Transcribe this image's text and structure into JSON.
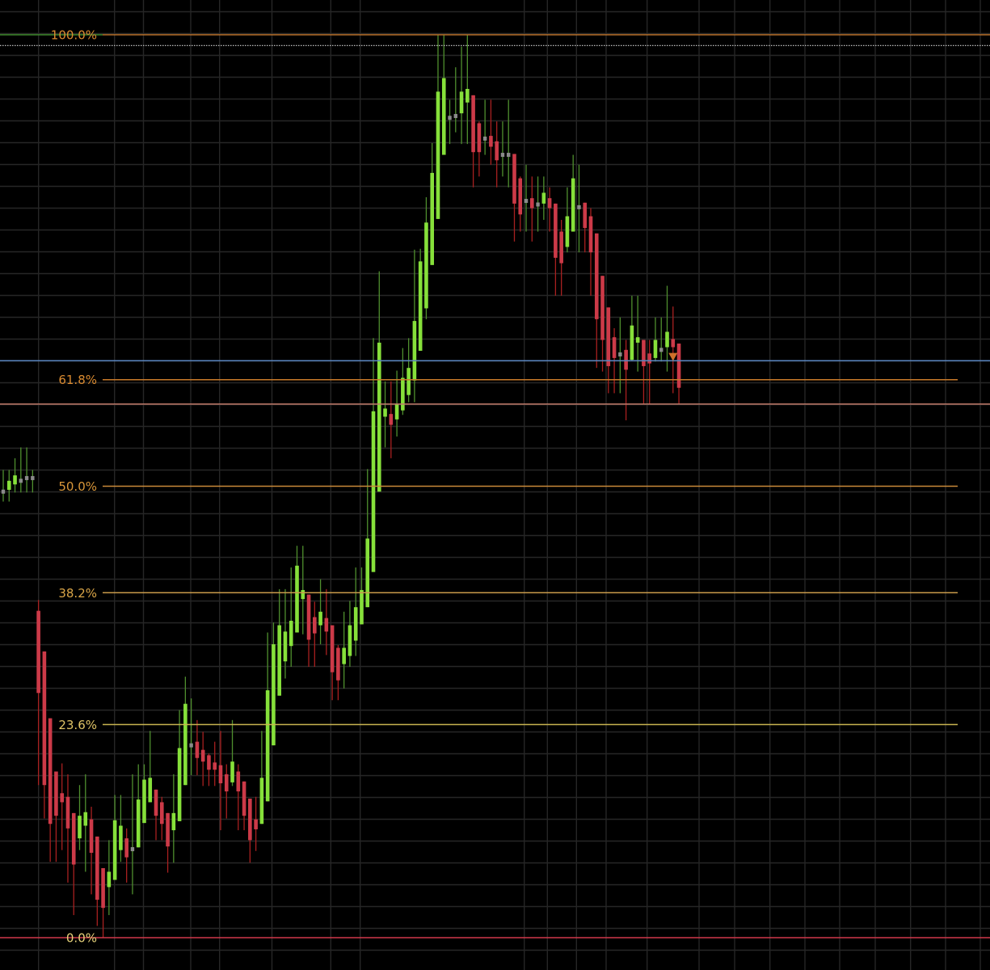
{
  "chart_data": {
    "type": "candlestick",
    "value_units": "percent of Fibonacci retracement range",
    "ylim": [
      -3.6,
      103.9
    ],
    "grid": true,
    "colors": {
      "background": "#000000",
      "grid": "#262626",
      "up_body": "#86e03a",
      "up_wick": "#4f8f2e",
      "down_body": "#cc3a48",
      "down_wick": "#a82020",
      "doji_marker": "#8a8a8a"
    },
    "fib_levels": [
      {
        "label": "100.0%",
        "value": 100.0,
        "line_color": "#b8702a",
        "label_color": "#d98a30",
        "full_width": true
      },
      {
        "label": "61.8%",
        "value": 61.8,
        "line_color": "#c97a2a",
        "label_color": "#d98a30",
        "full_width": false
      },
      {
        "label": "50.0%",
        "value": 50.0,
        "line_color": "#c98a3a",
        "label_color": "#d9973a",
        "full_width": false
      },
      {
        "label": "38.2%",
        "value": 38.2,
        "line_color": "#c99a4a",
        "label_color": "#d9a548",
        "full_width": false
      },
      {
        "label": "23.6%",
        "value": 23.6,
        "line_color": "#c8b450",
        "label_color": "#e0c466",
        "full_width": false
      },
      {
        "label": "0.0%",
        "value": 0.0,
        "line_color": "#d0384a",
        "label_color": "#e6d27a",
        "full_width": true
      }
    ],
    "extra_lines": [
      {
        "kind": "price-line-blue",
        "value": 63.9,
        "color": "#5a86c0",
        "style": "solid"
      },
      {
        "kind": "price-line-salmon",
        "value": 59.1,
        "color": "#c07a6a",
        "style": "solid"
      },
      {
        "kind": "high-dotted-line",
        "value": 98.8,
        "color": "#bbbbbb",
        "style": "dotted"
      }
    ],
    "marker": {
      "kind": "down-triangle",
      "candle_index": 114,
      "value": 64.4,
      "color": "#d0702a"
    },
    "candles_format": [
      "open",
      "high",
      "low",
      "close"
    ],
    "candles": [
      [
        49.4,
        51.8,
        48.3,
        49.4
      ],
      [
        49.6,
        51.8,
        48.3,
        50.6
      ],
      [
        50.2,
        53.1,
        49.3,
        51.2
      ],
      [
        50.6,
        54.3,
        49.3,
        50.6
      ],
      [
        50.9,
        54.3,
        49.3,
        50.9
      ],
      [
        50.9,
        51.8,
        49.3,
        50.9
      ],
      [
        36.2,
        37.4,
        16.9,
        27.1
      ],
      [
        31.7,
        31.7,
        13.2,
        16.9
      ],
      [
        24.3,
        24.3,
        8.4,
        12.6
      ],
      [
        18.4,
        18.4,
        8.4,
        13.5
      ],
      [
        16.0,
        19.3,
        9.7,
        15.0
      ],
      [
        15.6,
        18.1,
        6.1,
        12.1
      ],
      [
        13.8,
        13.8,
        2.5,
        8.1
      ],
      [
        11.0,
        16.9,
        9.7,
        13.5
      ],
      [
        12.4,
        18.1,
        7.3,
        13.9
      ],
      [
        13.1,
        14.5,
        4.8,
        9.4
      ],
      [
        11.2,
        11.2,
        1.3,
        4.2
      ],
      [
        7.7,
        7.7,
        0.0,
        3.3
      ],
      [
        5.6,
        10.8,
        2.5,
        7.3
      ],
      [
        6.4,
        15.8,
        6.4,
        13.0
      ],
      [
        9.7,
        15.8,
        8.4,
        12.4
      ],
      [
        11.0,
        12.1,
        6.1,
        8.9
      ],
      [
        9.8,
        18.1,
        4.8,
        9.8
      ],
      [
        10.0,
        19.2,
        10.0,
        15.3
      ],
      [
        12.7,
        19.2,
        12.7,
        17.5
      ],
      [
        15.0,
        22.9,
        15.0,
        17.7
      ],
      [
        16.4,
        16.4,
        10.8,
        13.5
      ],
      [
        15.0,
        15.6,
        10.8,
        12.6
      ],
      [
        13.8,
        13.8,
        7.2,
        10.1
      ],
      [
        11.9,
        18.1,
        8.3,
        13.8
      ],
      [
        12.9,
        25.2,
        12.9,
        21.0
      ],
      [
        16.9,
        28.9,
        16.9,
        25.9
      ],
      [
        21.3,
        26.5,
        18.0,
        21.3
      ],
      [
        21.7,
        24.1,
        18.0,
        19.9
      ],
      [
        20.8,
        22.8,
        16.8,
        19.5
      ],
      [
        20.2,
        20.4,
        16.8,
        18.6
      ],
      [
        19.4,
        21.7,
        16.8,
        18.6
      ],
      [
        19.1,
        22.9,
        11.9,
        17.1
      ],
      [
        18.1,
        19.2,
        13.2,
        16.2
      ],
      [
        17.2,
        24.1,
        16.8,
        19.5
      ],
      [
        18.4,
        19.2,
        11.9,
        16.2
      ],
      [
        17.3,
        17.3,
        11.9,
        13.5
      ],
      [
        15.4,
        15.4,
        8.3,
        10.8
      ],
      [
        13.1,
        15.6,
        9.6,
        12.0
      ],
      [
        12.6,
        22.9,
        12.6,
        17.7
      ],
      [
        15.1,
        33.8,
        15.1,
        27.4
      ],
      [
        21.3,
        34.9,
        21.3,
        32.5
      ],
      [
        26.8,
        38.6,
        26.8,
        34.6
      ],
      [
        30.6,
        38.6,
        28.7,
        33.9
      ],
      [
        32.3,
        41.0,
        30.0,
        35.1
      ],
      [
        33.8,
        43.4,
        33.8,
        41.2
      ],
      [
        37.5,
        43.4,
        33.6,
        38.5
      ],
      [
        38.0,
        38.0,
        30.0,
        33.0
      ],
      [
        35.5,
        37.2,
        30.0,
        33.7
      ],
      [
        34.6,
        39.7,
        32.5,
        36.1
      ],
      [
        35.4,
        38.6,
        31.3,
        33.9
      ],
      [
        34.6,
        34.6,
        26.3,
        29.4
      ],
      [
        32.1,
        32.4,
        26.3,
        28.5
      ],
      [
        30.3,
        36.1,
        27.6,
        32.1
      ],
      [
        31.2,
        37.3,
        30.0,
        34.6
      ],
      [
        32.9,
        41.0,
        31.2,
        36.6
      ],
      [
        34.7,
        41.0,
        34.7,
        38.5
      ],
      [
        36.6,
        51.9,
        36.6,
        44.2
      ],
      [
        40.5,
        66.4,
        40.5,
        58.3
      ],
      [
        49.4,
        73.8,
        49.4,
        65.9
      ],
      [
        57.7,
        61.6,
        54.3,
        58.6
      ],
      [
        58.0,
        61.6,
        53.1,
        56.8
      ],
      [
        57.4,
        62.8,
        55.5,
        59.1
      ],
      [
        58.4,
        65.3,
        57.9,
        62.0
      ],
      [
        60.1,
        66.4,
        59.3,
        63.1
      ],
      [
        61.7,
        76.2,
        59.3,
        68.3
      ],
      [
        65.0,
        76.3,
        65.0,
        74.9
      ],
      [
        69.7,
        82.0,
        68.5,
        79.2
      ],
      [
        74.5,
        88.0,
        74.5,
        84.7
      ],
      [
        79.6,
        100.0,
        79.6,
        93.7
      ],
      [
        86.7,
        100.0,
        86.7,
        95.2
      ],
      [
        90.8,
        92.8,
        87.9,
        90.8
      ],
      [
        91.0,
        96.4,
        89.2,
        91.0
      ],
      [
        91.3,
        98.7,
        87.9,
        93.7
      ],
      [
        92.5,
        100.0,
        87.9,
        94.0
      ],
      [
        93.3,
        93.3,
        83.1,
        87.0
      ],
      [
        90.2,
        90.4,
        84.3,
        87.0
      ],
      [
        88.5,
        92.8,
        86.7,
        88.5
      ],
      [
        88.8,
        92.8,
        85.6,
        87.6
      ],
      [
        88.2,
        90.4,
        83.1,
        86.1
      ],
      [
        86.7,
        90.4,
        84.3,
        86.7
      ],
      [
        86.7,
        92.8,
        83.1,
        86.7
      ],
      [
        86.8,
        86.8,
        77.1,
        81.3
      ],
      [
        84.1,
        84.3,
        78.2,
        80.1
      ],
      [
        81.6,
        85.6,
        78.2,
        81.6
      ],
      [
        81.9,
        84.3,
        77.1,
        80.8
      ],
      [
        81.2,
        84.3,
        78.2,
        81.2
      ],
      [
        81.3,
        84.3,
        79.5,
        82.5
      ],
      [
        81.9,
        83.1,
        78.2,
        80.8
      ],
      [
        81.3,
        81.3,
        71.1,
        75.3
      ],
      [
        78.2,
        79.5,
        71.1,
        74.7
      ],
      [
        76.5,
        83.1,
        75.9,
        79.9
      ],
      [
        78.2,
        86.7,
        78.2,
        84.1
      ],
      [
        80.9,
        85.6,
        75.9,
        80.9
      ],
      [
        81.4,
        81.4,
        75.9,
        78.6
      ],
      [
        79.9,
        80.8,
        71.1,
        75.9
      ],
      [
        78.0,
        78.0,
        63.1,
        68.5
      ],
      [
        73.3,
        73.3,
        62.7,
        66.2
      ],
      [
        69.8,
        69.8,
        60.3,
        63.3
      ],
      [
        66.5,
        67.5,
        60.3,
        64.2
      ],
      [
        64.6,
        68.7,
        60.3,
        64.6
      ],
      [
        65.1,
        66.2,
        57.3,
        62.9
      ],
      [
        64.0,
        71.1,
        63.9,
        67.8
      ],
      [
        65.9,
        71.1,
        62.7,
        66.5
      ],
      [
        66.2,
        66.2,
        59.1,
        63.3
      ],
      [
        64.7,
        66.2,
        59.1,
        63.6
      ],
      [
        64.2,
        68.7,
        63.8,
        66.2
      ],
      [
        65.1,
        68.7,
        63.8,
        65.1
      ],
      [
        65.4,
        72.2,
        62.7,
        67.1
      ],
      [
        66.3,
        69.9,
        60.3,
        65.4
      ],
      [
        65.8,
        65.8,
        59.1,
        60.9
      ]
    ]
  }
}
